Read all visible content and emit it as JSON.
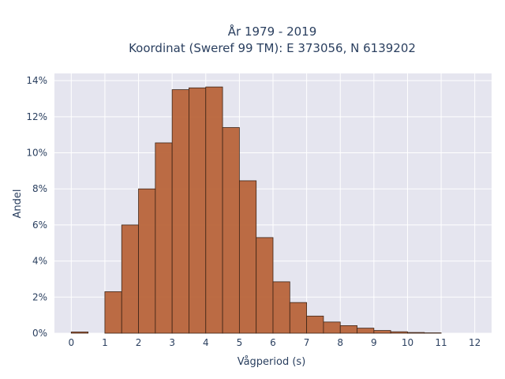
{
  "chart_data": {
    "type": "bar",
    "title_line1": "År 1979 - 2019",
    "title_line2": "Koordinat (Sweref 99 TM): E 373056, N 6139202",
    "xlabel": "Vågperiod (s)",
    "ylabel": "Andel",
    "bin_width": 0.5,
    "bins": [
      {
        "start": 0.0,
        "value": 0.07
      },
      {
        "start": 1.0,
        "value": 2.3
      },
      {
        "start": 1.5,
        "value": 6.0
      },
      {
        "start": 2.0,
        "value": 8.0
      },
      {
        "start": 2.5,
        "value": 10.55
      },
      {
        "start": 3.0,
        "value": 13.5
      },
      {
        "start": 3.5,
        "value": 13.6
      },
      {
        "start": 4.0,
        "value": 13.65
      },
      {
        "start": 4.5,
        "value": 11.4
      },
      {
        "start": 5.0,
        "value": 8.45
      },
      {
        "start": 5.5,
        "value": 5.3
      },
      {
        "start": 6.0,
        "value": 2.85
      },
      {
        "start": 6.5,
        "value": 1.7
      },
      {
        "start": 7.0,
        "value": 0.95
      },
      {
        "start": 7.5,
        "value": 0.62
      },
      {
        "start": 8.0,
        "value": 0.42
      },
      {
        "start": 8.5,
        "value": 0.28
      },
      {
        "start": 9.0,
        "value": 0.15
      },
      {
        "start": 9.5,
        "value": 0.08
      },
      {
        "start": 10.0,
        "value": 0.04
      },
      {
        "start": 10.5,
        "value": 0.02
      }
    ],
    "xlim": [
      -0.5,
      12.5
    ],
    "ylim": [
      0,
      14.4
    ],
    "xticks": [
      0,
      1,
      2,
      3,
      4,
      5,
      6,
      7,
      8,
      9,
      10,
      11,
      12
    ],
    "yticks": [
      0,
      2,
      4,
      6,
      8,
      10,
      12,
      14
    ],
    "ytick_labels": [
      "0%",
      "2%",
      "4%",
      "6%",
      "8%",
      "10%",
      "12%",
      "14%"
    ],
    "grid": true,
    "colors": {
      "bar_fill": "#b8643a",
      "bar_stroke": "#3d2416",
      "plot_bg": "#e5e5ef",
      "grid": "#ffffff"
    }
  }
}
